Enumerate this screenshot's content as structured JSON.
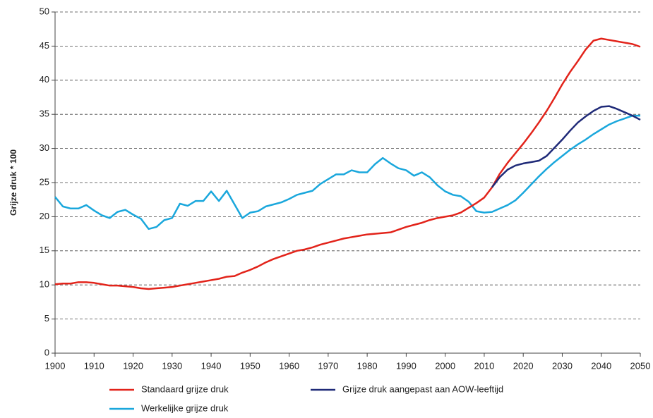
{
  "chart_data": {
    "type": "line",
    "y_label": "Grijze druk * 100",
    "x": [
      1900,
      1902,
      1904,
      1906,
      1908,
      1910,
      1912,
      1914,
      1916,
      1918,
      1920,
      1922,
      1924,
      1926,
      1928,
      1930,
      1932,
      1934,
      1936,
      1938,
      1940,
      1942,
      1944,
      1946,
      1948,
      1950,
      1952,
      1954,
      1956,
      1958,
      1960,
      1962,
      1964,
      1966,
      1968,
      1970,
      1972,
      1974,
      1976,
      1978,
      1980,
      1982,
      1984,
      1986,
      1988,
      1990,
      1992,
      1994,
      1996,
      1998,
      2000,
      2002,
      2004,
      2006,
      2008,
      2010,
      2012,
      2014,
      2016,
      2018,
      2020,
      2022,
      2024,
      2026,
      2028,
      2030,
      2032,
      2034,
      2036,
      2038,
      2040,
      2042,
      2044,
      2046,
      2048,
      2050
    ],
    "series": [
      {
        "name": "Standaard grijze druk",
        "color": "#e2231a",
        "values": [
          10.1,
          10.2,
          10.2,
          10.4,
          10.4,
          10.3,
          10.1,
          9.9,
          9.9,
          9.8,
          9.7,
          9.5,
          9.4,
          9.5,
          9.6,
          9.7,
          9.9,
          10.1,
          10.3,
          10.5,
          10.7,
          10.9,
          11.2,
          11.3,
          11.8,
          12.2,
          12.7,
          13.3,
          13.8,
          14.2,
          14.6,
          15.0,
          15.2,
          15.5,
          15.9,
          16.2,
          16.5,
          16.8,
          17.0,
          17.2,
          17.4,
          17.5,
          17.6,
          17.7,
          18.1,
          18.5,
          18.8,
          19.1,
          19.5,
          19.8,
          20.0,
          20.2,
          20.6,
          21.3,
          22.0,
          22.8,
          24.3,
          26.3,
          27.9,
          29.3,
          30.7,
          32.2,
          33.8,
          35.5,
          37.4,
          39.4,
          41.2,
          42.8,
          44.5,
          45.8,
          46.1,
          45.9,
          45.7,
          45.5,
          45.3,
          44.9
        ]
      },
      {
        "name": "Grijze druk aangepast aan AOW-leeftijd",
        "color": "#1f2a78",
        "values": [
          null,
          null,
          null,
          null,
          null,
          null,
          null,
          null,
          null,
          null,
          null,
          null,
          null,
          null,
          null,
          null,
          null,
          null,
          null,
          null,
          null,
          null,
          null,
          null,
          null,
          null,
          null,
          null,
          null,
          null,
          null,
          null,
          null,
          null,
          null,
          null,
          null,
          null,
          null,
          null,
          null,
          null,
          null,
          null,
          null,
          null,
          null,
          null,
          null,
          null,
          null,
          null,
          null,
          null,
          null,
          null,
          24.3,
          25.8,
          26.9,
          27.5,
          27.8,
          28.0,
          28.2,
          28.9,
          30.1,
          31.3,
          32.6,
          33.8,
          34.7,
          35.5,
          36.1,
          36.2,
          35.8,
          35.3,
          34.8,
          34.2
        ]
      },
      {
        "name": "Werkelijke grijze druk",
        "color": "#1aa7dc",
        "values": [
          22.9,
          21.5,
          21.2,
          21.2,
          21.7,
          20.9,
          20.2,
          19.8,
          20.7,
          21.0,
          20.3,
          19.7,
          18.2,
          18.5,
          19.5,
          19.8,
          21.9,
          21.6,
          22.3,
          22.3,
          23.7,
          22.3,
          23.8,
          21.8,
          19.8,
          20.6,
          20.8,
          21.5,
          21.8,
          22.1,
          22.6,
          23.2,
          23.5,
          23.8,
          24.8,
          25.5,
          26.2,
          26.2,
          26.8,
          26.5,
          26.5,
          27.7,
          28.6,
          27.8,
          27.1,
          26.8,
          26.0,
          26.5,
          25.8,
          24.6,
          23.7,
          23.2,
          23.0,
          22.2,
          20.8,
          20.6,
          20.7,
          21.2,
          21.7,
          22.4,
          23.5,
          24.7,
          25.9,
          27.0,
          28.0,
          28.9,
          29.8,
          30.6,
          31.3,
          32.1,
          32.8,
          33.5,
          34.0,
          34.4,
          34.8,
          34.8
        ]
      }
    ],
    "xlim": [
      1900,
      2050
    ],
    "xticks": [
      1900,
      1910,
      1920,
      1930,
      1940,
      1950,
      1960,
      1970,
      1980,
      1990,
      2000,
      2010,
      2020,
      2030,
      2040,
      2050
    ],
    "ylim": [
      0,
      50
    ],
    "yticks": [
      0,
      5,
      10,
      15,
      20,
      25,
      30,
      35,
      40,
      45,
      50
    ],
    "grid": true
  }
}
